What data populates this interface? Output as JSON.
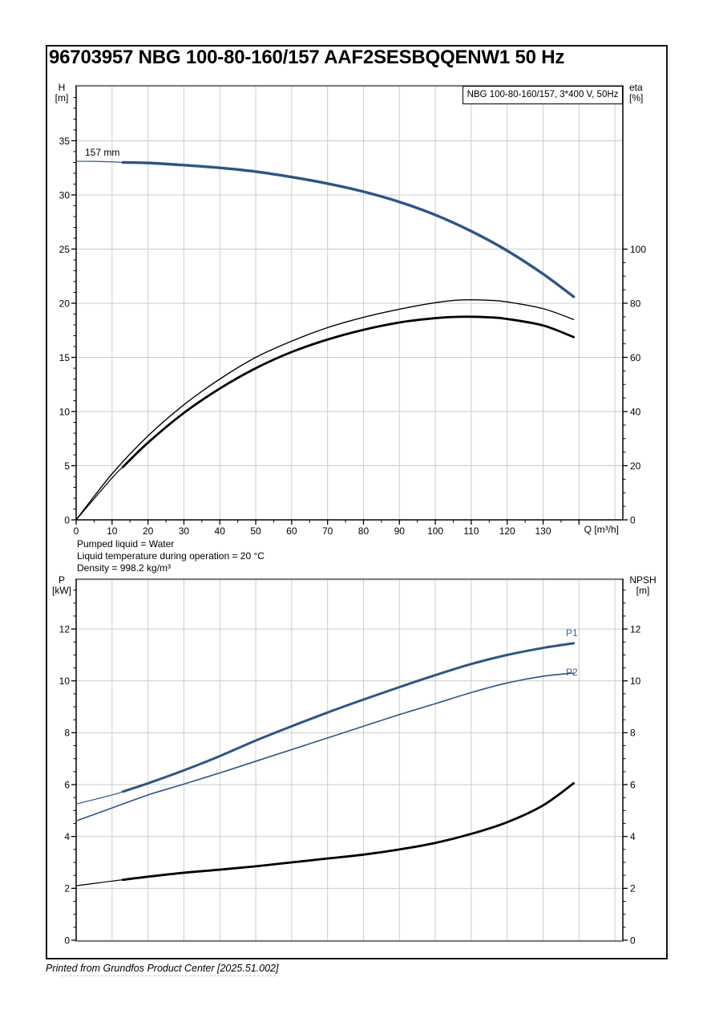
{
  "page": {
    "title": "96703957 NBG 100-80-160/157 AAF2SESBQQENW1 50 Hz",
    "footer": "Printed from Grundfos Product Center [2025.51.002]"
  },
  "conditions": [
    "Pumped liquid = Water",
    "Liquid temperature during operation = 20 °C",
    "Density = 998.2 kg/m³"
  ],
  "colors": {
    "curve_blue": "#2d5585",
    "label_blue": "#3e6597",
    "grid": "#cccccc",
    "axis": "#000000",
    "border_gray": "#7f7f7f"
  },
  "chart_data": [
    {
      "type": "line",
      "legend": "NBG 100-80-160/157, 3*400 V, 50Hz",
      "xlabel": "Q [m³/h]",
      "ylabel_left": [
        "H",
        "[m]"
      ],
      "ylabel_right": [
        "eta",
        "[%]"
      ],
      "x_axis": {
        "min": 0,
        "max": 152.2,
        "major": [
          0,
          10,
          20,
          30,
          40,
          50,
          60,
          70,
          80,
          90,
          100,
          110,
          120,
          130,
          140
        ],
        "labels": [
          0,
          10,
          20,
          30,
          40,
          50,
          60,
          70,
          80,
          90,
          100,
          110,
          120,
          130
        ],
        "minor_step": 5,
        "minor_max": 140,
        "grid": [
          10,
          20,
          30,
          40,
          50,
          60,
          70,
          80,
          90,
          100,
          110,
          120,
          130,
          140,
          150
        ]
      },
      "y_left": {
        "min": 0,
        "max": 40.07,
        "labels": [
          0,
          5,
          10,
          15,
          20,
          25,
          30,
          35
        ],
        "minor_step": 1,
        "minor_max": 39,
        "grid": [
          5,
          10,
          15,
          20,
          25,
          30,
          35
        ]
      },
      "y_right": {
        "min": 0,
        "max": 160.3,
        "labels": [
          0,
          20,
          40,
          60,
          80,
          100
        ],
        "minor_step": 5,
        "minor_max": 100
      },
      "series": [
        {
          "name": "head-curve-157mm",
          "label": "157 mm",
          "axis": "left",
          "color": "blue",
          "width": 3.4,
          "thin_width": 1.2,
          "thin_until": 13,
          "x": [
            0,
            5,
            10,
            13,
            20,
            30,
            40,
            50,
            60,
            70,
            80,
            90,
            100,
            110,
            120,
            130,
            138.5
          ],
          "y": [
            33.1,
            33.1,
            33.05,
            33.0,
            32.95,
            32.75,
            32.5,
            32.15,
            31.65,
            31.05,
            30.3,
            29.35,
            28.15,
            26.65,
            24.85,
            22.7,
            20.6
          ]
        },
        {
          "name": "eta-curve-1",
          "axis": "right",
          "color": "black",
          "width": 1.4,
          "x": [
            0,
            10,
            20,
            30,
            40,
            50,
            60,
            70,
            80,
            90,
            100,
            107,
            115,
            120,
            130,
            138.5
          ],
          "y": [
            0,
            17,
            31,
            42.5,
            52,
            60,
            66,
            71,
            74.8,
            77.8,
            80.2,
            81.2,
            81.1,
            80.5,
            78,
            74
          ]
        },
        {
          "name": "eta-curve-2",
          "axis": "right",
          "color": "black",
          "width": 2.8,
          "thin_width": 1.2,
          "thin_until": 13,
          "x": [
            0,
            10,
            13,
            20,
            30,
            40,
            50,
            60,
            70,
            80,
            90,
            100,
            107,
            115,
            120,
            130,
            138.5
          ],
          "y": [
            0,
            15.5,
            19.5,
            28.5,
            39.5,
            48.5,
            56,
            62,
            66.6,
            70.2,
            72.9,
            74.5,
            75,
            74.8,
            74.2,
            71.8,
            67.5
          ]
        }
      ]
    },
    {
      "type": "line",
      "xlabel": "",
      "ylabel_left": [
        "P",
        "[kW]"
      ],
      "ylabel_right": [
        "NPSH",
        "[m]"
      ],
      "x_axis": {
        "min": 0,
        "max": 152.2,
        "grid": [
          10,
          20,
          30,
          40,
          50,
          60,
          70,
          80,
          90,
          100,
          110,
          120,
          130,
          140,
          150
        ]
      },
      "y_left": {
        "min": 0,
        "max": 13.92,
        "labels": [
          0,
          2,
          4,
          6,
          8,
          10,
          12
        ],
        "minor_step": 0.5,
        "minor_max": 13.5,
        "grid": [
          2,
          4,
          6,
          8,
          10,
          12
        ]
      },
      "y_right": {
        "min": 0,
        "max": 13.92,
        "labels": [
          0,
          2,
          4,
          6,
          8,
          10,
          12
        ],
        "minor_step": 0.5,
        "minor_max": 13.5
      },
      "series": [
        {
          "name": "power-p1",
          "label": "P1",
          "axis": "left",
          "color": "blue",
          "width": 3.0,
          "thin_width": 1.2,
          "thin_until": 13,
          "x": [
            0,
            10,
            13,
            20,
            30,
            40,
            50,
            60,
            70,
            80,
            90,
            100,
            110,
            120,
            130,
            138.5
          ],
          "y": [
            5.25,
            5.6,
            5.73,
            6.05,
            6.55,
            7.1,
            7.7,
            8.25,
            8.78,
            9.28,
            9.76,
            10.22,
            10.65,
            11.0,
            11.27,
            11.45
          ]
        },
        {
          "name": "power-p2",
          "label": "P2",
          "axis": "left",
          "color": "blue",
          "width": 1.6,
          "x": [
            0,
            10,
            20,
            30,
            40,
            50,
            60,
            70,
            80,
            90,
            100,
            110,
            120,
            130,
            138.5
          ],
          "y": [
            4.6,
            5.1,
            5.6,
            6.02,
            6.45,
            6.9,
            7.35,
            7.8,
            8.25,
            8.7,
            9.12,
            9.55,
            9.92,
            10.18,
            10.3
          ]
        },
        {
          "name": "npsh-curve",
          "axis": "right",
          "color": "black",
          "width": 2.8,
          "thin_width": 1.2,
          "thin_until": 13,
          "x": [
            0,
            10,
            13,
            20,
            30,
            40,
            50,
            60,
            70,
            80,
            90,
            100,
            110,
            120,
            130,
            138.5
          ],
          "y": [
            2.1,
            2.28,
            2.33,
            2.45,
            2.6,
            2.72,
            2.85,
            3.0,
            3.15,
            3.3,
            3.5,
            3.75,
            4.1,
            4.55,
            5.2,
            6.05
          ]
        }
      ]
    }
  ]
}
